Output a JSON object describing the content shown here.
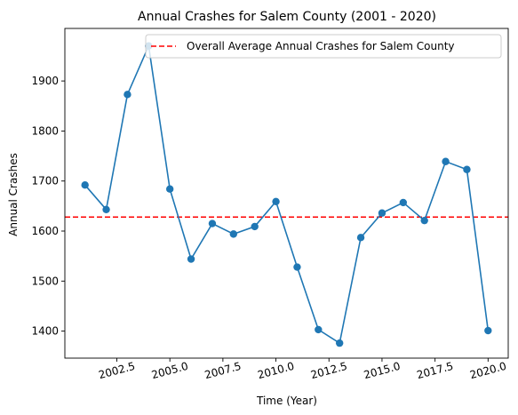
{
  "chart_data": {
    "type": "line",
    "title": "Annual Crashes for Salem County (2001 - 2020)",
    "xlabel": "Time (Year)",
    "ylabel": "Annual Crashes",
    "xlim": [
      2000.05,
      2020.95
    ],
    "ylim": [
      1346,
      2005
    ],
    "xticks": [
      2002.5,
      2005.0,
      2007.5,
      2010.0,
      2012.5,
      2015.0,
      2017.5,
      2020.0
    ],
    "xtick_labels": [
      "2002.5",
      "2005.0",
      "2007.5",
      "2010.0",
      "2012.5",
      "2015.0",
      "2017.5",
      "2020.0"
    ],
    "yticks": [
      1400,
      1500,
      1600,
      1700,
      1800,
      1900
    ],
    "ytick_labels": [
      "1400",
      "1500",
      "1600",
      "1700",
      "1800",
      "1900"
    ],
    "series": [
      {
        "color": "#1f77b4",
        "marker": "circle",
        "x": [
          2001,
          2002,
          2003,
          2004,
          2005,
          2006,
          2007,
          2008,
          2009,
          2010,
          2011,
          2012,
          2013,
          2014,
          2015,
          2016,
          2017,
          2018,
          2019,
          2020
        ],
        "y": [
          1692,
          1643,
          1873,
          1970,
          1684,
          1544,
          1615,
          1594,
          1609,
          1659,
          1528,
          1403,
          1376,
          1587,
          1636,
          1657,
          1621,
          1739,
          1723,
          1401
        ]
      }
    ],
    "average_line": {
      "label": "Overall Average Annual Crashes for Salem County",
      "value": 1628,
      "color": "#ff0000",
      "style": "dashed"
    },
    "legend": {
      "placement": "top-right"
    },
    "grid": false
  }
}
